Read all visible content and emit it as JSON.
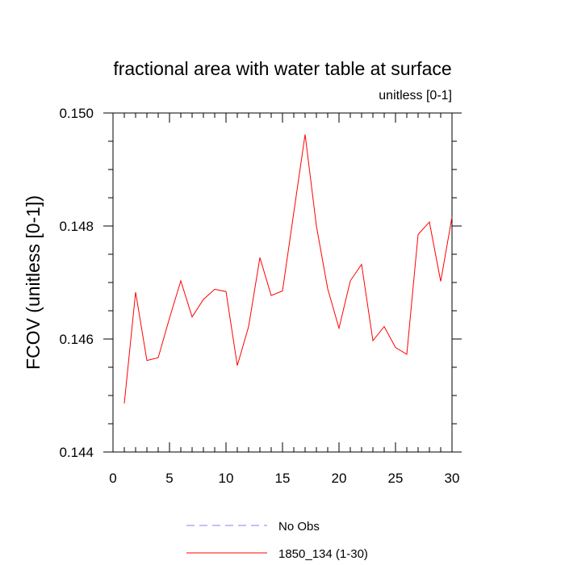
{
  "chart_data": {
    "type": "line",
    "title": "fractional area with water table at surface",
    "units_label": "unitless [0-1]",
    "ylabel": "FCOV  (unitless [0-1])",
    "xlabel": "",
    "xlim": [
      0,
      30
    ],
    "ylim": [
      0.144,
      0.15
    ],
    "x_ticks": [
      0,
      5,
      10,
      15,
      20,
      25,
      30
    ],
    "y_ticks": [
      0.144,
      0.146,
      0.148,
      0.15
    ],
    "y_tick_labels": [
      "0.144",
      "0.146",
      "0.148",
      "0.150"
    ],
    "grid": false,
    "legend_position": "bottom",
    "legend": [
      {
        "name": "No Obs",
        "color": "#8080ff",
        "style": "dashed"
      },
      {
        "name": "1850_134 (1-30)",
        "color": "#ff0000",
        "style": "solid"
      }
    ],
    "series": [
      {
        "name": "1850_134 (1-30)",
        "color": "#ff0000",
        "x": [
          1,
          2,
          3,
          4,
          5,
          6,
          7,
          8,
          9,
          10,
          11,
          12,
          13,
          14,
          15,
          16,
          17,
          18,
          19,
          20,
          21,
          22,
          23,
          24,
          25,
          26,
          27,
          28,
          29,
          30
        ],
        "values": [
          0.14486,
          0.14683,
          0.14562,
          0.14567,
          0.14637,
          0.14703,
          0.14639,
          0.1467,
          0.14688,
          0.14684,
          0.14553,
          0.14622,
          0.14744,
          0.14677,
          0.14685,
          0.14824,
          0.14962,
          0.148,
          0.14689,
          0.14619,
          0.14703,
          0.14732,
          0.14597,
          0.14622,
          0.14585,
          0.14573,
          0.14785,
          0.14807,
          0.14702,
          0.14816
        ]
      }
    ]
  }
}
